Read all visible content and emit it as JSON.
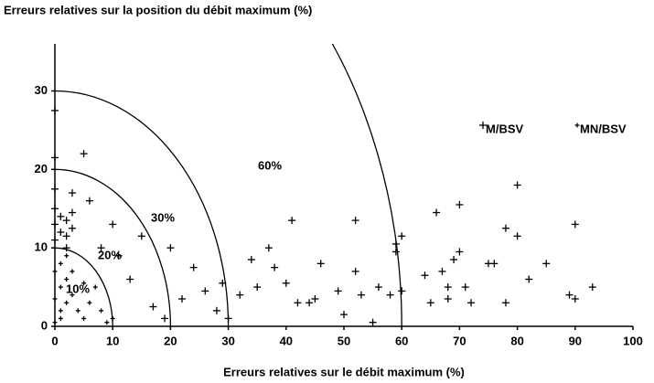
{
  "chart_data": {
    "type": "scatter",
    "title": "Erreurs relatives sur la position du débit maximum (%)",
    "xlabel": "Erreurs relatives sur le débit maximum (%)",
    "xlim": [
      0,
      100
    ],
    "xticks": [
      0,
      10,
      20,
      30,
      40,
      50,
      60,
      70,
      80,
      90,
      100
    ],
    "ylim": [
      0,
      36
    ],
    "yticks": [
      0,
      10,
      20,
      30
    ],
    "arcs": [
      10,
      20,
      30,
      60
    ],
    "annotations": [
      "10%",
      "20%",
      "30%",
      "60%"
    ],
    "series": [
      {
        "name": "M/BSV",
        "color": "#000000",
        "x": [
          0,
          0,
          0,
          0,
          0,
          0,
          1,
          1,
          2,
          2,
          2,
          3,
          3,
          3,
          5,
          6,
          8,
          10,
          11,
          13,
          15,
          20,
          17,
          19,
          22,
          24,
          26,
          28,
          29,
          30,
          32,
          34,
          35,
          37,
          38,
          41,
          40,
          42,
          44,
          45,
          46,
          49,
          50,
          52,
          52,
          53,
          55,
          56,
          58,
          59,
          59,
          60,
          60,
          64,
          65,
          66,
          67,
          68,
          68,
          69,
          70,
          70,
          71,
          72,
          75,
          76,
          78,
          78,
          80,
          80,
          82,
          85,
          89,
          90,
          90,
          93
        ],
        "values": [
          27.5,
          21.5,
          17.5,
          15,
          13,
          11,
          14,
          12,
          13.5,
          11.5,
          10,
          17,
          14.5,
          12.5,
          22,
          16,
          10,
          13,
          9,
          6,
          11.5,
          10,
          2.5,
          1,
          3.5,
          7.5,
          4.5,
          2,
          5.5,
          1,
          4,
          8.5,
          5,
          10,
          7.5,
          13.5,
          5.5,
          3,
          3,
          3.5,
          8,
          4.5,
          1.5,
          13.5,
          7,
          4,
          0.5,
          5,
          4,
          9.5,
          10.5,
          11.5,
          4.5,
          6.5,
          3,
          14.5,
          7,
          5,
          3.5,
          8.5,
          9.5,
          15.5,
          5,
          3,
          8,
          8,
          12.5,
          3,
          18,
          11.5,
          6,
          8,
          4,
          3.5,
          13,
          5
        ]
      },
      {
        "name": "MN/BSV",
        "color": "#000000",
        "x": [
          0,
          1,
          1,
          2,
          0,
          1,
          2,
          0,
          3,
          4,
          5,
          6,
          7,
          8,
          9,
          10,
          3,
          5,
          1,
          2
        ],
        "values": [
          0.5,
          1,
          2,
          3,
          3.5,
          5,
          6,
          7,
          4,
          2,
          1,
          3,
          5,
          2,
          0.5,
          1,
          7,
          5.5,
          8,
          9
        ]
      }
    ]
  }
}
